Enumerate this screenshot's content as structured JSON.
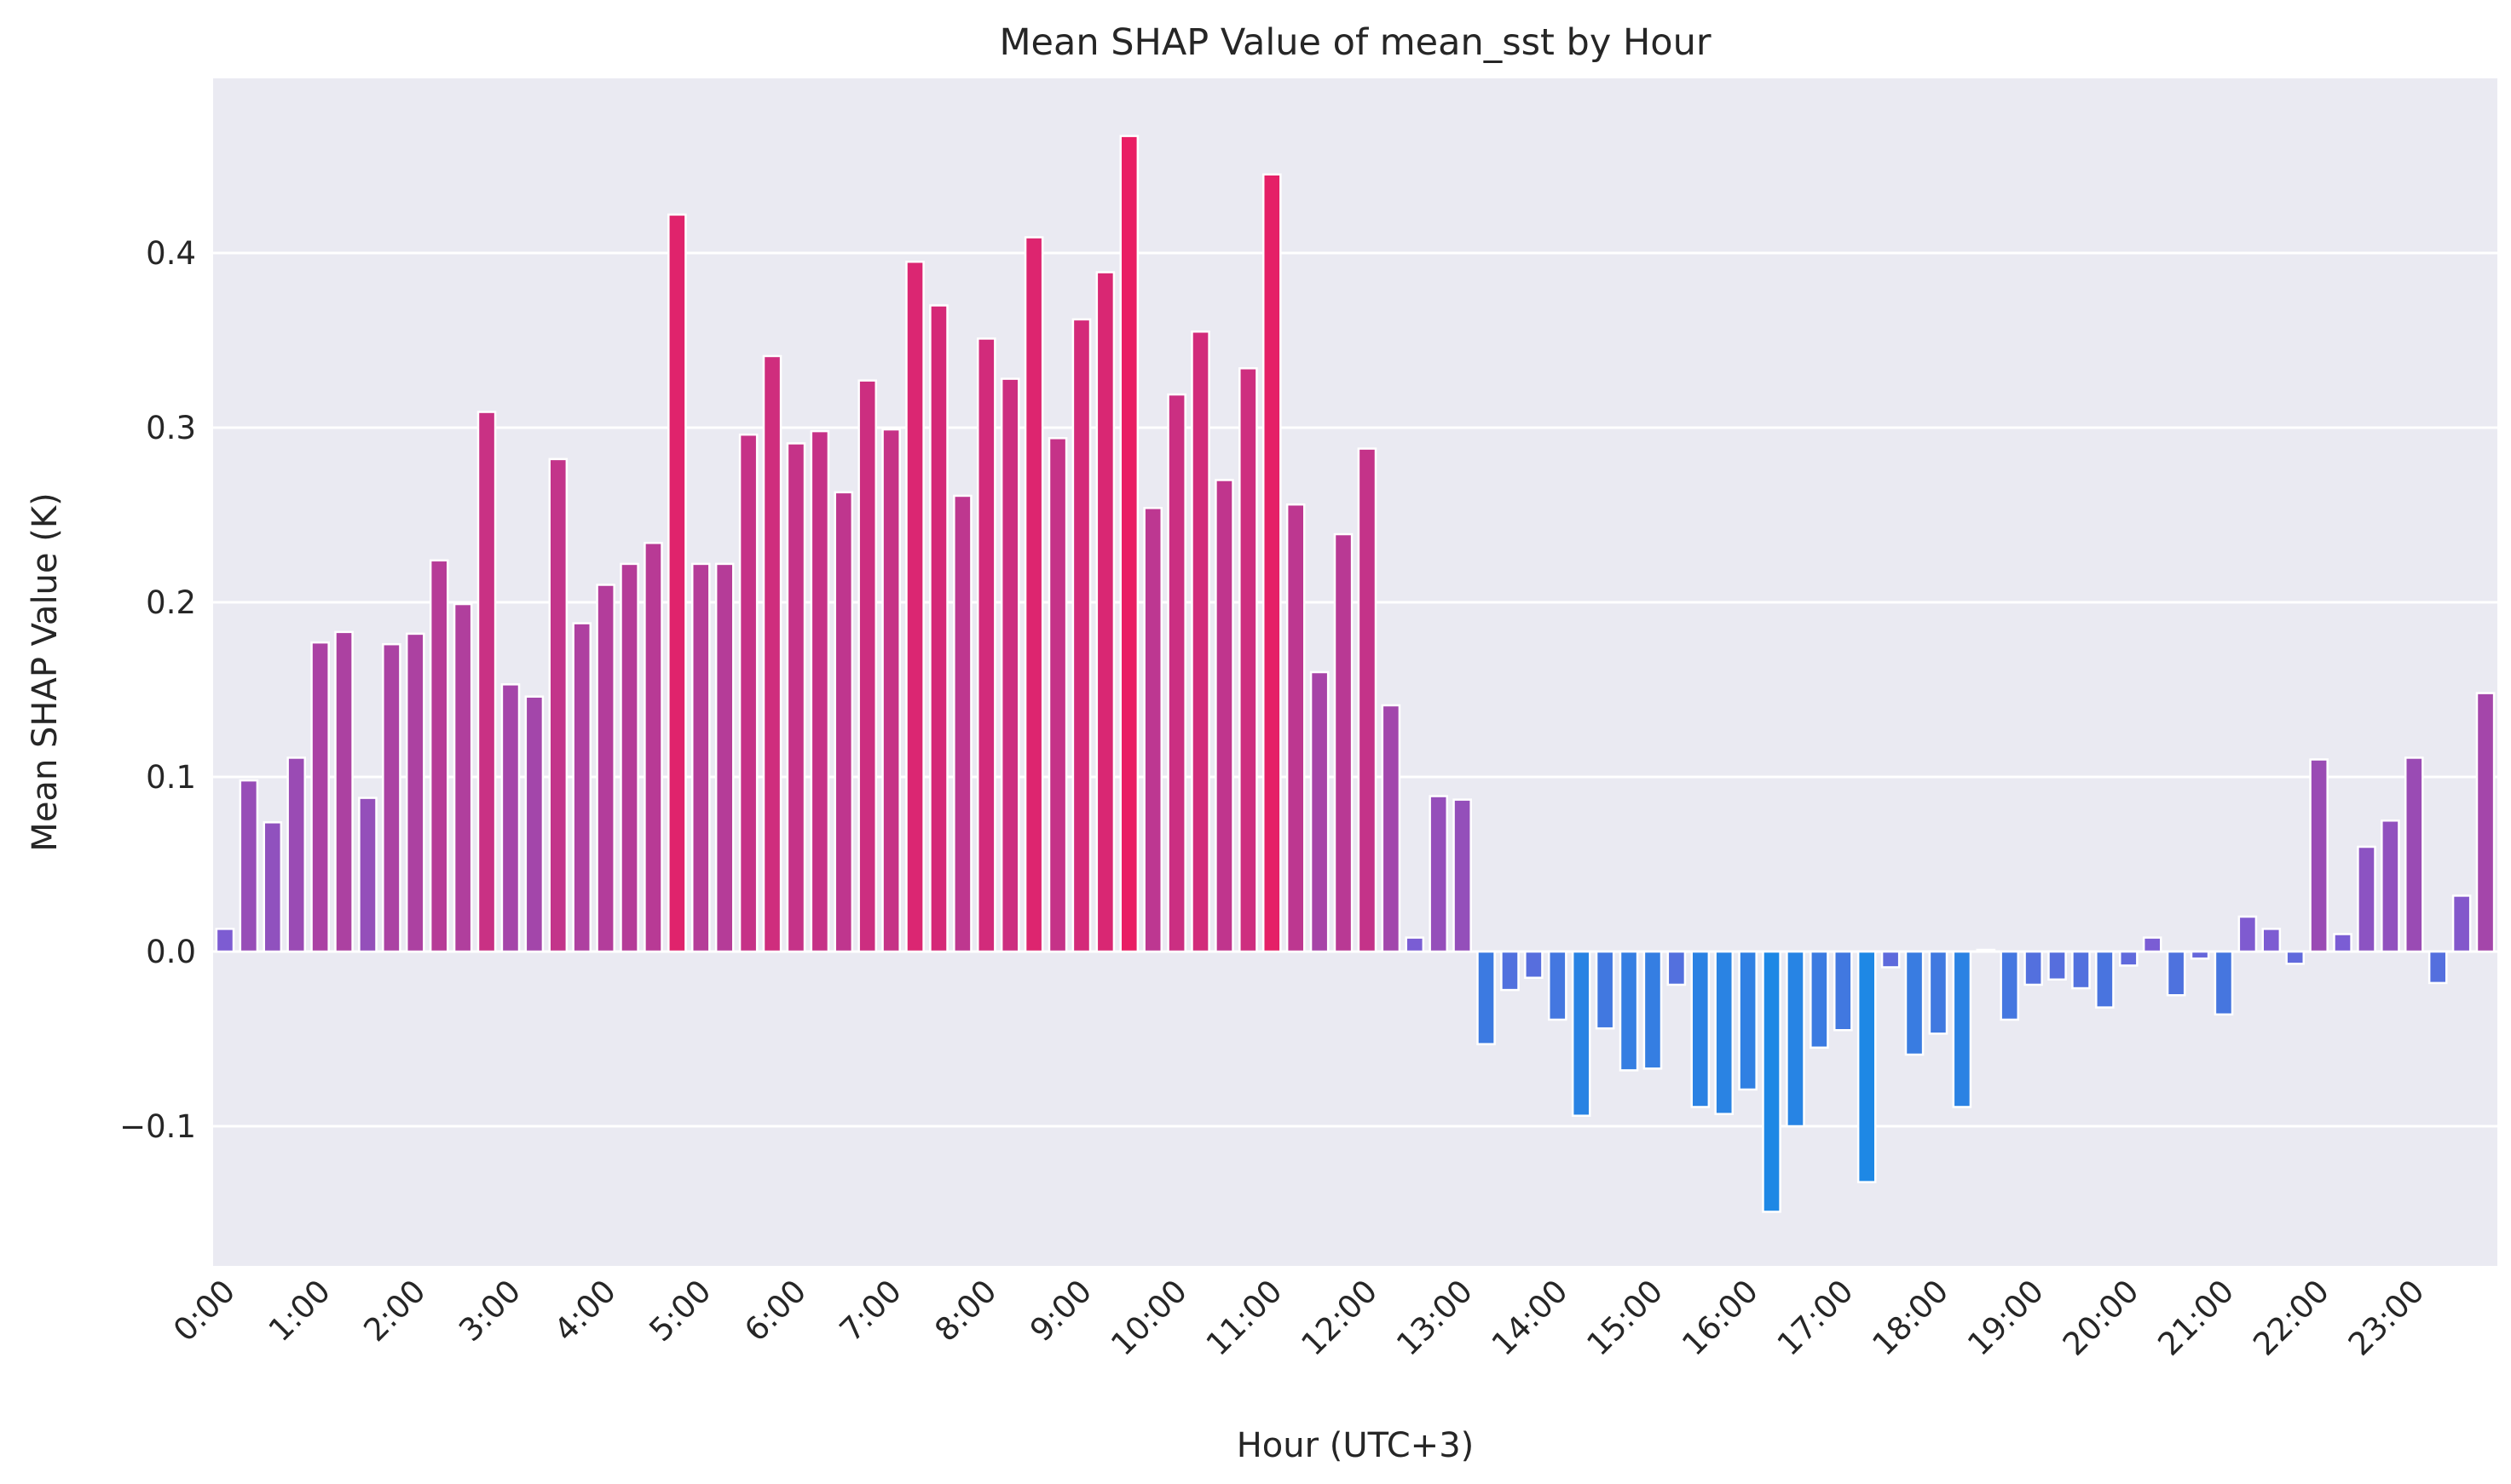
{
  "chart_data": {
    "type": "bar",
    "title": "Mean SHAP Value of mean_sst by Hour",
    "xlabel": "Hour (UTC+3)",
    "ylabel": "Mean SHAP Value (K)",
    "ylim": [
      -0.18,
      0.5
    ],
    "yticks": [
      -0.1,
      0.0,
      0.1,
      0.2,
      0.3,
      0.4
    ],
    "ytick_labels": [
      "−0.1",
      "0.0",
      "0.1",
      "0.2",
      "0.3",
      "0.4"
    ],
    "grid": true,
    "bins_per_hour": 4,
    "xtick_labels": [
      "0:00",
      "1:00",
      "2:00",
      "3:00",
      "4:00",
      "5:00",
      "6:00",
      "7:00",
      "8:00",
      "9:00",
      "10:00",
      "11:00",
      "12:00",
      "13:00",
      "14:00",
      "15:00",
      "16:00",
      "17:00",
      "18:00",
      "19:00",
      "20:00",
      "21:00",
      "22:00",
      "23:00"
    ],
    "values": [
      0.013,
      0.098,
      0.074,
      0.111,
      0.177,
      0.183,
      0.088,
      0.176,
      0.182,
      0.224,
      0.199,
      0.309,
      0.153,
      0.146,
      0.282,
      0.188,
      0.21,
      0.222,
      0.234,
      0.422,
      0.222,
      0.222,
      0.296,
      0.341,
      0.291,
      0.298,
      0.263,
      0.327,
      0.299,
      0.395,
      0.37,
      0.261,
      0.351,
      0.328,
      0.409,
      0.294,
      0.362,
      0.389,
      0.467,
      0.254,
      0.319,
      0.355,
      0.27,
      0.334,
      0.445,
      0.256,
      0.16,
      0.239,
      0.288,
      0.141,
      0.008,
      0.089,
      0.087,
      -0.053,
      -0.022,
      -0.015,
      -0.039,
      -0.094,
      -0.044,
      -0.068,
      -0.067,
      -0.019,
      -0.089,
      -0.093,
      -0.079,
      -0.149,
      -0.1,
      -0.055,
      -0.045,
      -0.132,
      -0.009,
      -0.059,
      -0.047,
      -0.089,
      0.001,
      -0.039,
      -0.019,
      -0.016,
      -0.021,
      -0.032,
      -0.008,
      0.008,
      -0.025,
      -0.004,
      -0.036,
      0.02,
      0.013,
      -0.007,
      0.11,
      0.01,
      0.06,
      0.075,
      0.111,
      -0.018,
      0.032,
      0.148
    ],
    "colormap": {
      "negative": "#1e88e5",
      "zero": "#7660d9",
      "positive": "#e91e63"
    },
    "background_color": "#eaeaf2",
    "grid_color": "#ffffff",
    "text_color": "#262626"
  }
}
